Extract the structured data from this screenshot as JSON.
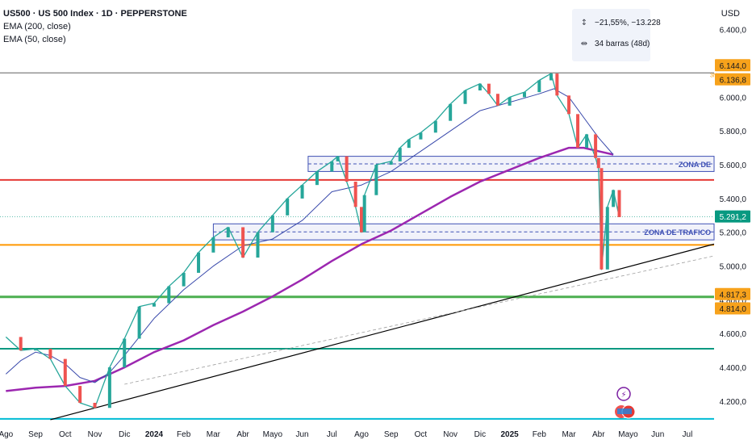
{
  "header": {
    "title": "US500 · US 500 Index · 1D · PEPPERSTONE",
    "indicator_1": "EMA (200, close)",
    "indicator_2": "EMA (50, close)"
  },
  "measure_tool": {
    "change": "−21,55%, −13.228",
    "bars": "34 barras (48d)"
  },
  "currency": "USD",
  "colors": {
    "candle_up": "#26a69a",
    "candle_down": "#ef5350",
    "ema200": "#9c27b0",
    "ema50": "#3949ab",
    "red_line": "#e53935",
    "orange_line": "#ff9800",
    "green_line": "#4caf50",
    "teal_line": "#089981",
    "zone_fill": "#e8eaf6",
    "zone_border": "#3f51b5",
    "last_price_bg": "#089981",
    "level_label_bg": "#f7a21b",
    "trendline": "#000000"
  },
  "chart_data": {
    "type": "line",
    "symbol": "US500",
    "timeframe": "1D",
    "ylim": [
      4080,
      6480
    ],
    "y_ticks": [
      4200,
      4400,
      4600,
      4800,
      5000,
      5200,
      5400,
      5600,
      5800,
      6000,
      6200,
      6400
    ],
    "y_tick_labels": [
      "4.200,0",
      "4.400,0",
      "4.600,0",
      "4.800,0",
      "5.000,0",
      "5.200,0",
      "5.400,0",
      "5.600,0",
      "5.800,0",
      "6.000,0",
      "6.200,0",
      "6.400,0"
    ],
    "x_labels": [
      "Ago",
      "Sep",
      "Oct",
      "Nov",
      "Dic",
      "2024",
      "Feb",
      "Mar",
      "Abr",
      "Mayo",
      "Jun",
      "Jul",
      "Ago",
      "Sep",
      "Oct",
      "Nov",
      "Dic",
      "2025",
      "Feb",
      "Mar",
      "Abr",
      "Mayo",
      "Jun",
      "Jul"
    ],
    "x_label_index": [
      0,
      1,
      2,
      3,
      4,
      5,
      6,
      7,
      8,
      9,
      10,
      11,
      12,
      13,
      14,
      15,
      16,
      17,
      18,
      19,
      20,
      21,
      22,
      23
    ],
    "x_range": [
      -0.2,
      23.9
    ],
    "series": [
      {
        "name": "US500",
        "x": [
          0,
          0.5,
          1,
          1.5,
          2,
          2.5,
          3,
          3.5,
          4,
          4.5,
          5,
          5.5,
          6,
          6.5,
          7,
          7.5,
          8,
          8.5,
          9,
          9.5,
          10,
          10.5,
          11,
          11.2,
          11.5,
          11.8,
          12,
          12.1,
          12.5,
          13,
          13.3,
          13.6,
          14,
          14.5,
          15,
          15.5,
          16,
          16.3,
          16.6,
          17,
          17.5,
          18,
          18.4,
          18.6,
          19,
          19.3,
          19.6,
          19.9,
          20,
          20.1,
          20.3,
          20.5,
          20.7
        ],
        "values": [
          4580,
          4500,
          4510,
          4450,
          4290,
          4190,
          4160,
          4400,
          4570,
          4760,
          4780,
          4880,
          4960,
          5080,
          5170,
          5230,
          5050,
          5200,
          5300,
          5400,
          5480,
          5560,
          5620,
          5650,
          5500,
          5350,
          5200,
          5420,
          5600,
          5620,
          5700,
          5750,
          5790,
          5860,
          5960,
          6040,
          6080,
          6020,
          5950,
          6000,
          6030,
          6100,
          6140,
          6010,
          5900,
          5700,
          5780,
          5640,
          5580,
          4980,
          5350,
          5450,
          5290
        ]
      },
      {
        "name": "EMA (200, close)",
        "x": [
          0,
          1,
          2,
          3,
          4,
          5,
          6,
          7,
          8,
          9,
          10,
          11,
          12,
          13,
          14,
          15,
          16,
          17,
          18,
          19,
          19.5,
          20,
          20.5
        ],
        "values": [
          4260,
          4280,
          4290,
          4320,
          4400,
          4490,
          4560,
          4650,
          4730,
          4820,
          4920,
          5030,
          5130,
          5210,
          5310,
          5410,
          5500,
          5570,
          5640,
          5700,
          5700,
          5680,
          5660
        ]
      },
      {
        "name": "EMA (50, close)",
        "x": [
          0,
          0.5,
          1,
          1.5,
          2,
          2.5,
          3,
          3.5,
          4,
          5,
          6,
          7,
          8,
          9,
          10,
          11,
          12,
          13,
          14,
          15,
          16,
          17,
          18,
          18.5,
          19,
          19.5,
          20,
          20.5
        ],
        "values": [
          4360,
          4440,
          4490,
          4470,
          4420,
          4340,
          4310,
          4370,
          4470,
          4690,
          4860,
          5000,
          5120,
          5160,
          5270,
          5440,
          5480,
          5560,
          5680,
          5800,
          5920,
          5970,
          6020,
          6050,
          6000,
          5880,
          5760,
          5660
        ]
      }
    ],
    "horizontal_levels": [
      {
        "value": 6144.0,
        "label": "6.144,0",
        "color": "#616161"
      },
      {
        "value": 6136.8,
        "label": "6.136,8",
        "color": "#f7a21b"
      },
      {
        "value": 5510,
        "label": "",
        "color": "#e53935"
      },
      {
        "value": 5125,
        "label": "",
        "color": "#ff9800"
      },
      {
        "value": 4817.3,
        "label": "4.817,3",
        "color": "#4caf50"
      },
      {
        "value": 4814.0,
        "label": "4.814,0",
        "color": "#f7a21b"
      },
      {
        "value": 4510,
        "label": "",
        "color": "#089981"
      },
      {
        "value": 4095,
        "label": "",
        "color": "#00bcd4"
      }
    ],
    "last_price": {
      "value": 5291.2,
      "label": "5.291,2"
    },
    "zones": [
      {
        "label": "ZONA DE",
        "x_start": 10.2,
        "x_end": 23.9,
        "y_low": 5560,
        "y_high": 5650
      },
      {
        "label": "ZONA DE TRAFICO",
        "x_start": 7.0,
        "x_end": 23.9,
        "y_low": 5155,
        "y_high": 5250
      }
    ],
    "trendlines": [
      {
        "x": [
          1.5,
          23.9
        ],
        "values": [
          4090,
          5130
        ],
        "style": "solid"
      },
      {
        "x": [
          4.0,
          23.9
        ],
        "values": [
          4300,
          5060
        ],
        "style": "dashed"
      }
    ],
    "annotations": [
      "3N"
    ]
  }
}
